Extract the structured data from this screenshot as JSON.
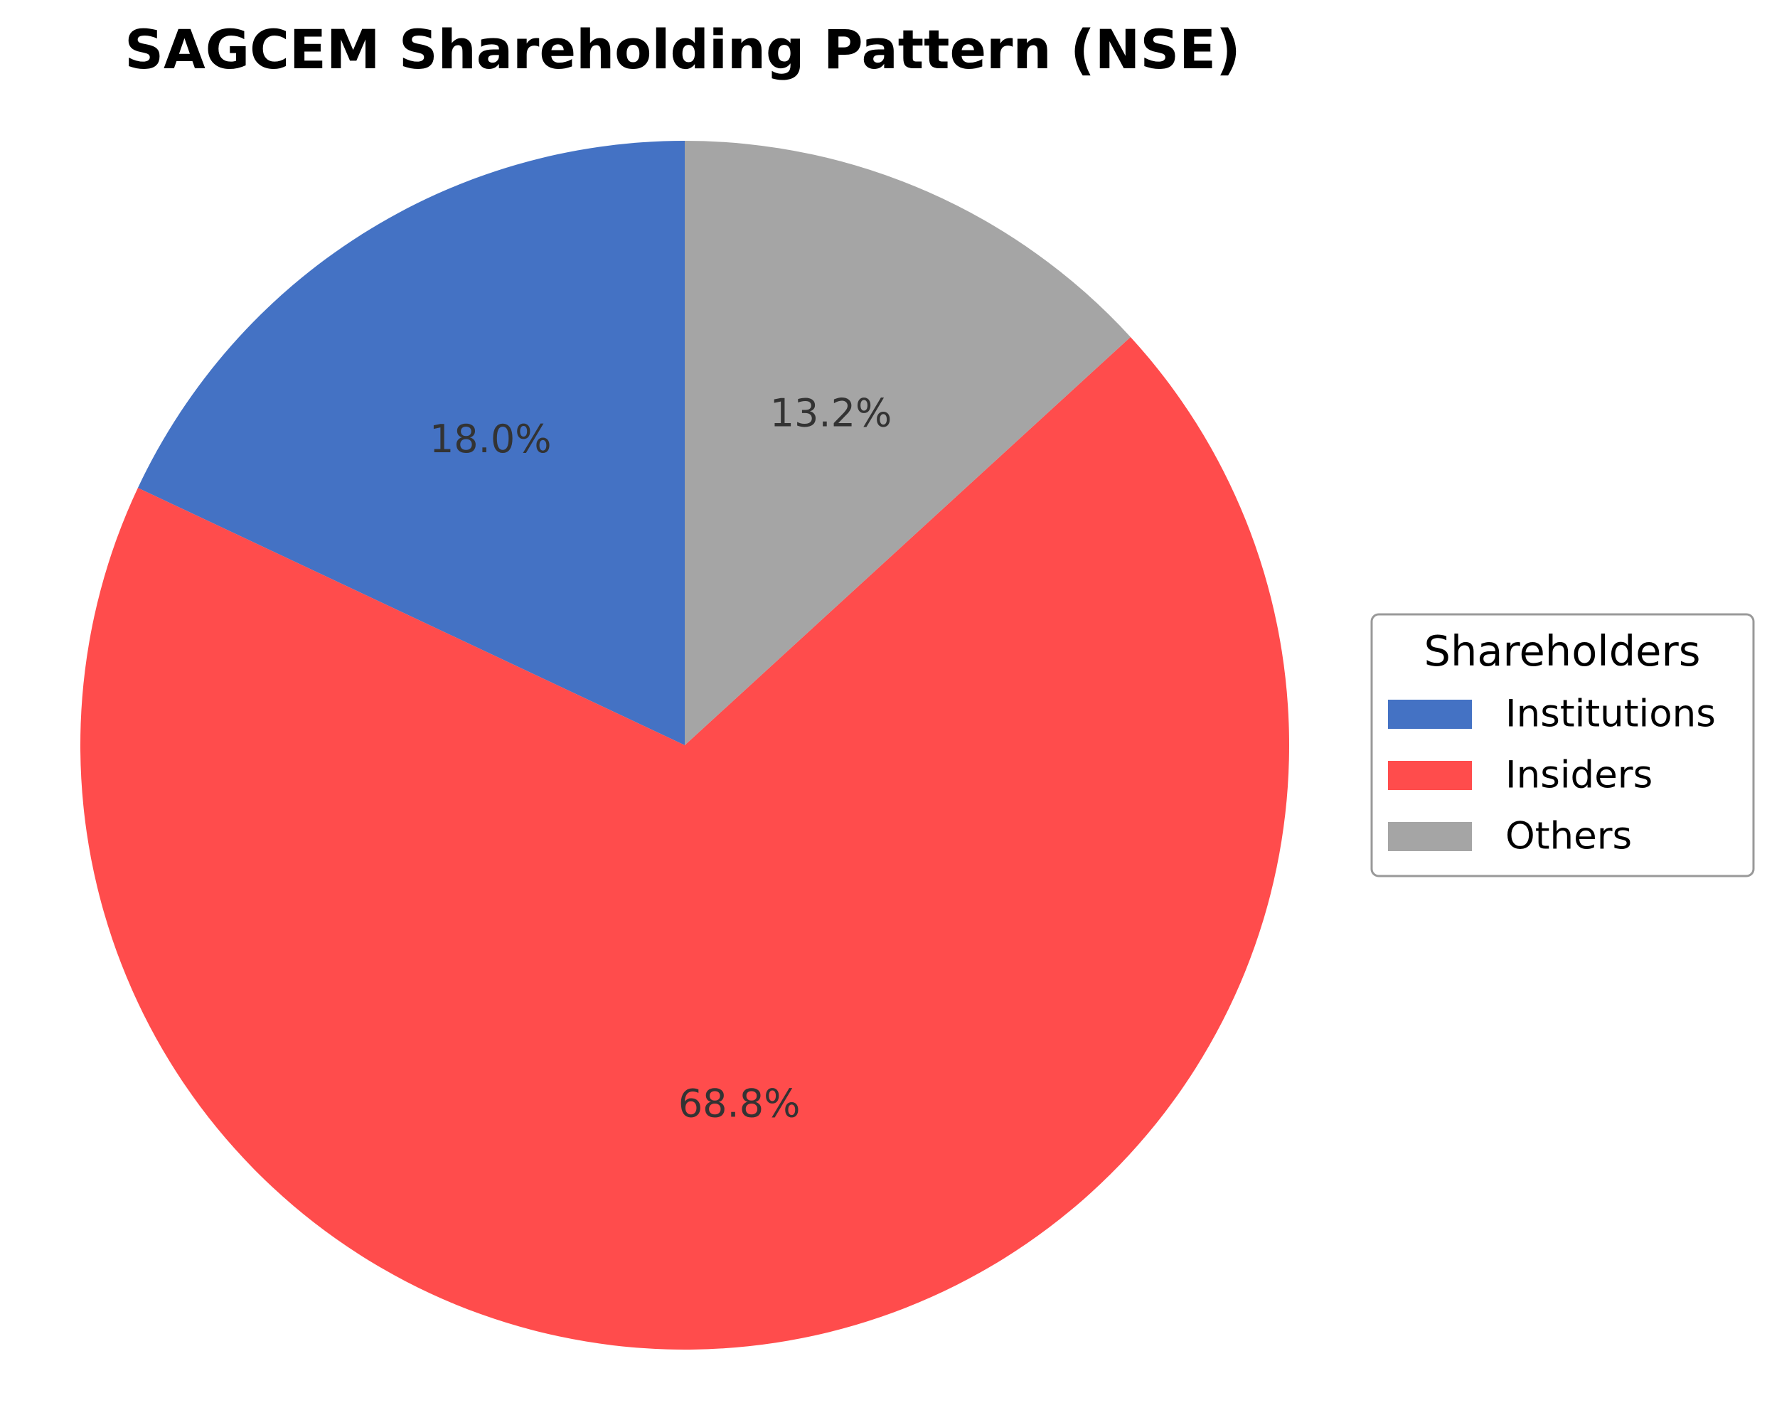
{
  "chart_data": {
    "type": "pie",
    "title": "SAGCEM Shareholding Pattern (NSE)",
    "legend_title": "Shareholders",
    "legend_position": "right",
    "start_angle_deg": 90,
    "direction": "counterclockwise",
    "slices": [
      {
        "label": "Institutions",
        "value": 18.0,
        "display": "18.0%",
        "color": "#4472C4"
      },
      {
        "label": "Insiders",
        "value": 68.8,
        "display": "68.8%",
        "color": "#FF4C4C"
      },
      {
        "label": "Others",
        "value": 13.2,
        "display": "13.2%",
        "color": "#A5A5A5"
      }
    ]
  }
}
